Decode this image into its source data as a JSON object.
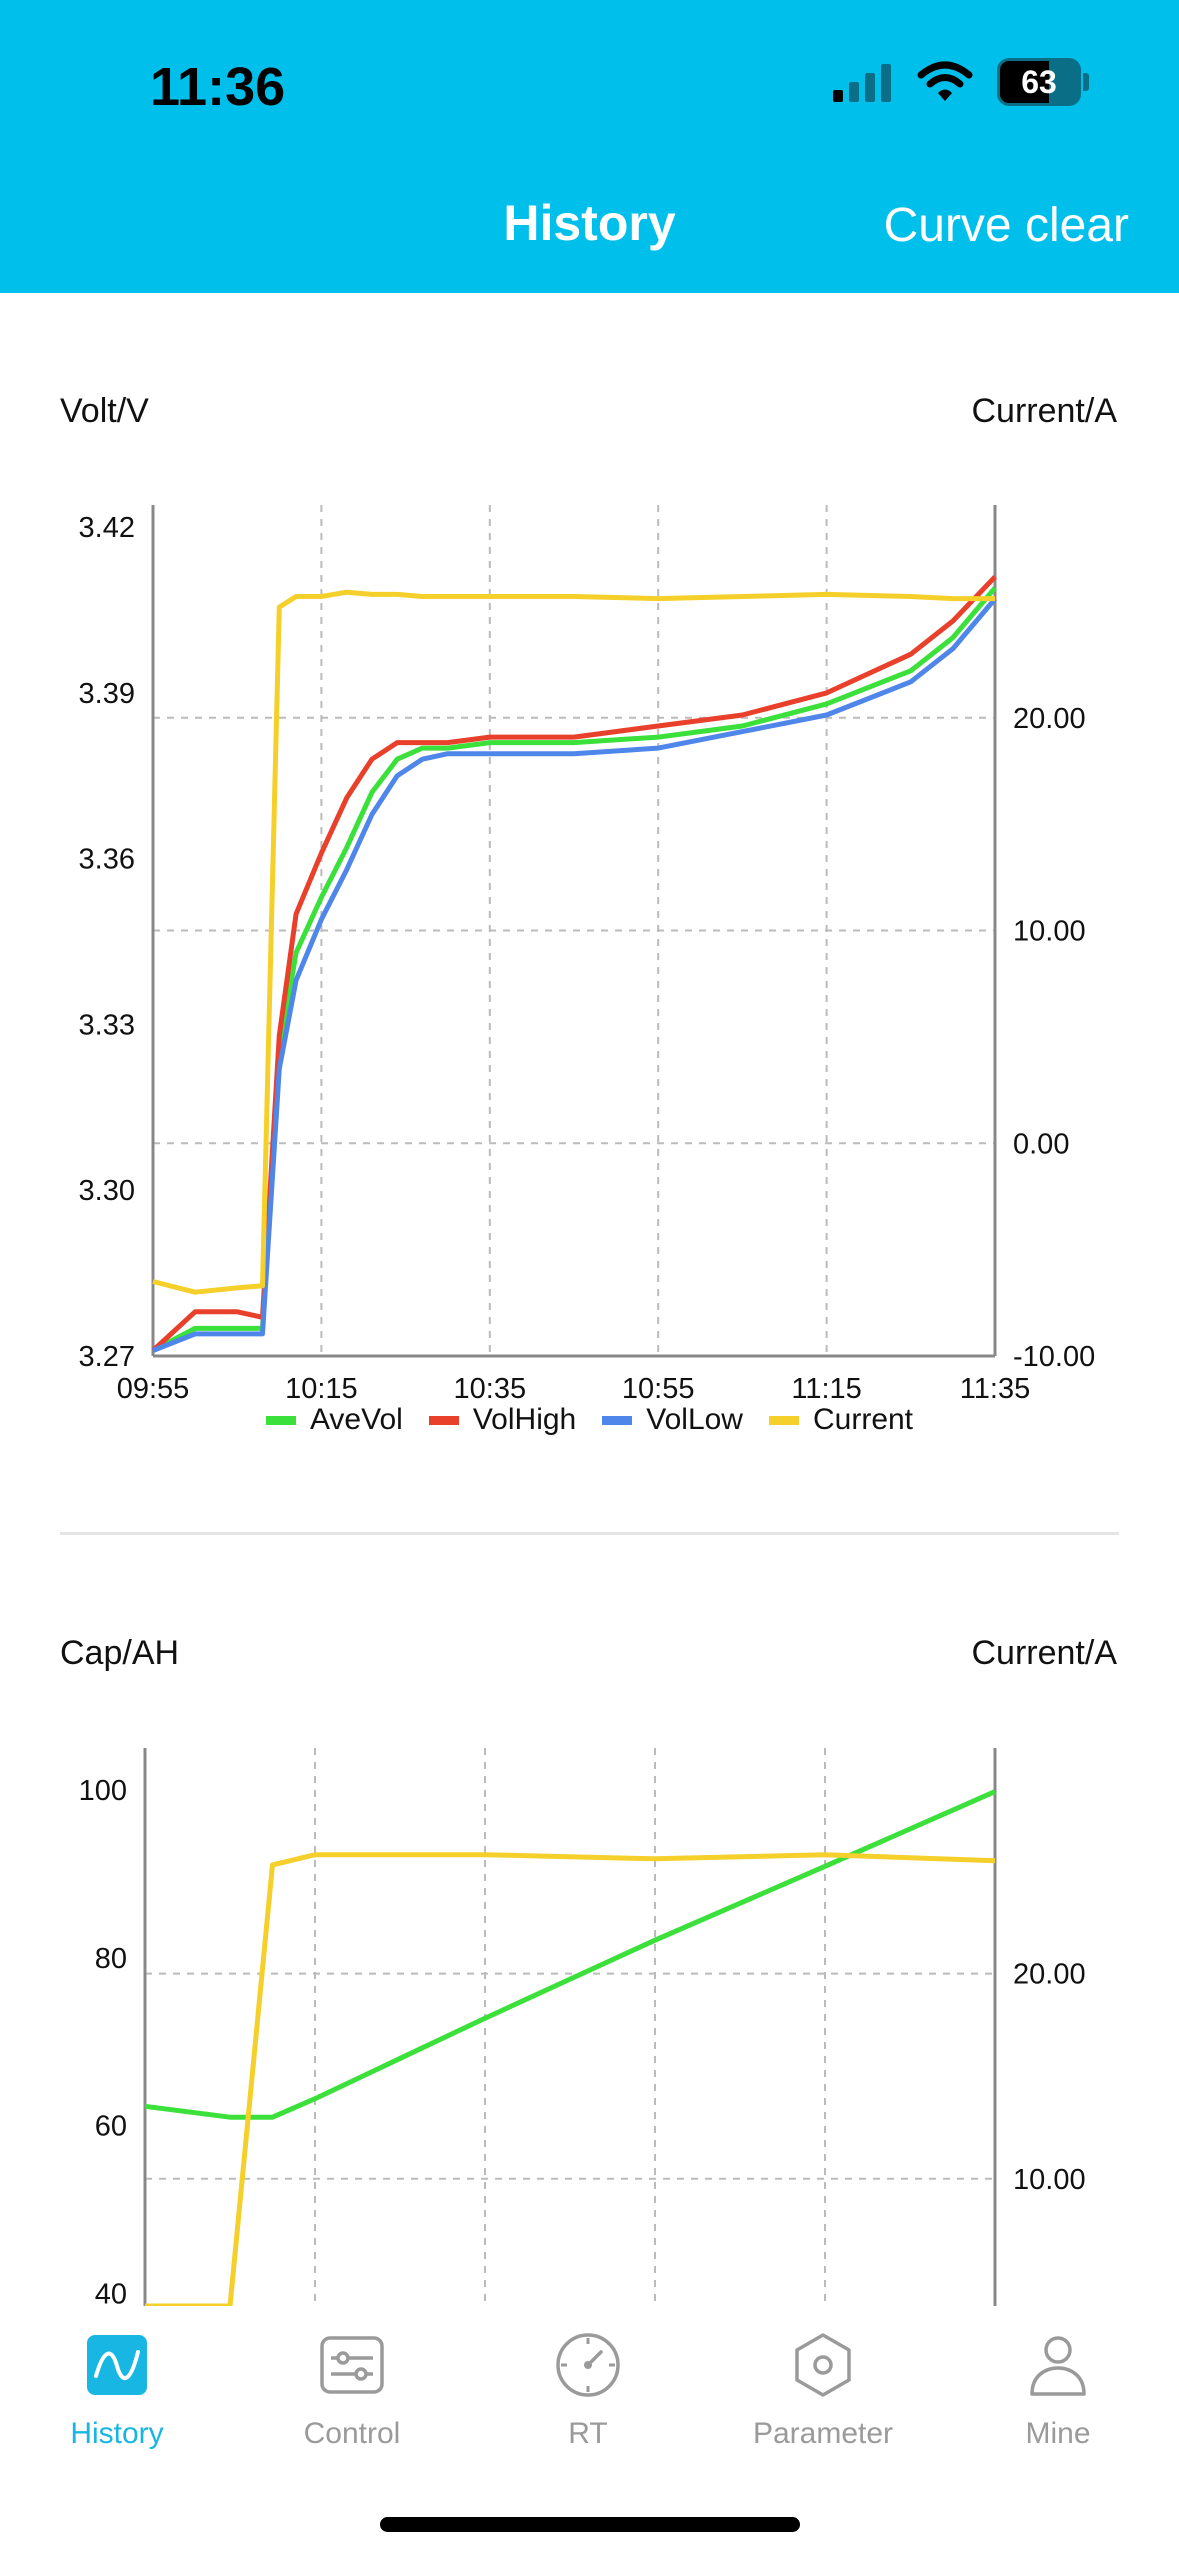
{
  "status_bar": {
    "time": "11:36",
    "battery": "63"
  },
  "header": {
    "title": "History",
    "action": "Curve clear"
  },
  "chart1": {
    "left_axis_title": "Volt/V",
    "right_axis_title": "Current/A"
  },
  "chart2": {
    "left_axis_title": "Cap/AH",
    "right_axis_title": "Current/A"
  },
  "colors": {
    "header": "#00BFEA",
    "ave": "#3BE03B",
    "high": "#E8402B",
    "low": "#4F86EA",
    "current": "#F5CF2A",
    "tab_active": "#18B6E3",
    "tab_inactive": "#9a9a9a"
  },
  "chart_data": [
    {
      "type": "line",
      "title": "",
      "ylabel": "Volt/V",
      "y2label": "Current/A",
      "x_ticks": [
        "09:55",
        "10:15",
        "10:35",
        "10:55",
        "11:15",
        "11:35"
      ],
      "y_ticks": [
        "3.27",
        "3.30",
        "3.33",
        "3.36",
        "3.39",
        "3.42"
      ],
      "y2_ticks": [
        "-10.00",
        "0.00",
        "10.00",
        "20.00"
      ],
      "ylim": [
        3.27,
        3.424
      ],
      "y2lim": [
        -10,
        30
      ],
      "x": [
        "09:55",
        "10:00",
        "10:05",
        "10:08",
        "10:10",
        "10:12",
        "10:15",
        "10:18",
        "10:21",
        "10:24",
        "10:27",
        "10:30",
        "10:35",
        "10:45",
        "10:55",
        "11:05",
        "11:15",
        "11:25",
        "11:30",
        "11:35"
      ],
      "series": [
        {
          "name": "AveVol",
          "axis": "left",
          "values": [
            3.271,
            3.275,
            3.275,
            3.275,
            3.325,
            3.343,
            3.353,
            3.362,
            3.372,
            3.378,
            3.38,
            3.38,
            3.381,
            3.381,
            3.382,
            3.384,
            3.388,
            3.394,
            3.4,
            3.409
          ]
        },
        {
          "name": "VolHigh",
          "axis": "left",
          "values": [
            3.271,
            3.278,
            3.278,
            3.277,
            3.328,
            3.35,
            3.361,
            3.371,
            3.378,
            3.381,
            3.381,
            3.381,
            3.382,
            3.382,
            3.384,
            3.386,
            3.39,
            3.397,
            3.403,
            3.411
          ]
        },
        {
          "name": "VolLow",
          "axis": "left",
          "values": [
            3.271,
            3.274,
            3.274,
            3.274,
            3.322,
            3.338,
            3.349,
            3.358,
            3.368,
            3.375,
            3.378,
            3.379,
            3.379,
            3.379,
            3.38,
            3.383,
            3.386,
            3.392,
            3.398,
            3.407
          ]
        },
        {
          "name": "Current",
          "axis": "right",
          "values": [
            -6.5,
            -7.0,
            -6.8,
            -6.7,
            25.2,
            25.7,
            25.7,
            25.9,
            25.8,
            25.8,
            25.7,
            25.7,
            25.7,
            25.7,
            25.6,
            25.7,
            25.8,
            25.7,
            25.6,
            25.6
          ]
        }
      ]
    },
    {
      "type": "line",
      "title": "",
      "ylabel": "Cap/AH",
      "y2label": "Current/A",
      "y_ticks": [
        "40",
        "60",
        "80",
        "100"
      ],
      "y2_ticks": [
        "10.00",
        "20.00"
      ],
      "ylim": [
        38.5,
        105
      ],
      "y2lim": [
        3.8,
        31
      ],
      "x": [
        "09:55",
        "10:05",
        "10:10",
        "10:15",
        "10:35",
        "10:55",
        "11:15",
        "11:35"
      ],
      "series": [
        {
          "name": "Cap",
          "axis": "left",
          "values": [
            62.3,
            61.0,
            61.0,
            63.2,
            72.8,
            82.1,
            90.9,
            99.8
          ]
        },
        {
          "name": "Current",
          "axis": "right",
          "values": [
            3.8,
            3.8,
            25.3,
            25.8,
            25.8,
            25.6,
            25.8,
            25.5
          ]
        }
      ]
    }
  ],
  "tabs": [
    {
      "label": "History",
      "icon": "history-wave-icon",
      "active": true
    },
    {
      "label": "Control",
      "icon": "control-sliders-icon",
      "active": false
    },
    {
      "label": "RT",
      "icon": "gauge-icon",
      "active": false
    },
    {
      "label": "Parameter",
      "icon": "hexagon-nut-icon",
      "active": false
    },
    {
      "label": "Mine",
      "icon": "person-icon",
      "active": false
    }
  ]
}
